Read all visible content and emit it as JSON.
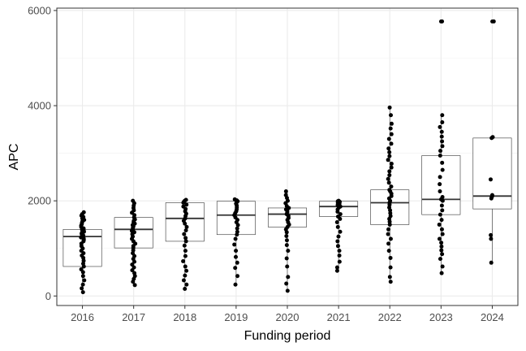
{
  "chart_data": {
    "type": "box",
    "xlabel": "Funding period",
    "ylabel": "APC",
    "ylim": [
      -200,
      6050
    ],
    "yticks": [
      0,
      2000,
      4000,
      6000
    ],
    "grid": true,
    "categories": [
      "2016",
      "2017",
      "2018",
      "2019",
      "2020",
      "2021",
      "2022",
      "2023",
      "2024"
    ],
    "boxes": [
      {
        "category": "2016",
        "q1": 620,
        "median": 1250,
        "q3": 1400,
        "whisker_low": 80,
        "whisker_high": 1760,
        "points": [
          80,
          160,
          240,
          330,
          420,
          500,
          560,
          620,
          680,
          740,
          800,
          850,
          900,
          950,
          1000,
          1050,
          1100,
          1150,
          1180,
          1210,
          1230,
          1250,
          1270,
          1290,
          1310,
          1330,
          1350,
          1370,
          1390,
          1400,
          1420,
          1450,
          1480,
          1510,
          1540,
          1570,
          1600,
          1630,
          1660,
          1690,
          1720,
          1760
        ]
      },
      {
        "category": "2017",
        "q1": 1010,
        "median": 1400,
        "q3": 1650,
        "whisker_low": 230,
        "whisker_high": 2000,
        "points": [
          230,
          300,
          360,
          420,
          480,
          540,
          600,
          660,
          720,
          780,
          840,
          900,
          960,
          1010,
          1050,
          1100,
          1150,
          1200,
          1250,
          1300,
          1340,
          1370,
          1400,
          1430,
          1460,
          1490,
          1520,
          1550,
          1580,
          1610,
          1650,
          1700,
          1750,
          1800,
          1850,
          1900,
          1950,
          2000
        ]
      },
      {
        "category": "2018",
        "q1": 1150,
        "median": 1630,
        "q3": 1960,
        "whisker_low": 150,
        "whisker_high": 2020,
        "points": [
          150,
          240,
          330,
          430,
          530,
          620,
          730,
          840,
          950,
          1060,
          1150,
          1220,
          1300,
          1380,
          1450,
          1520,
          1580,
          1630,
          1680,
          1730,
          1780,
          1830,
          1880,
          1920,
          1960,
          1980,
          2000,
          2020
        ]
      },
      {
        "category": "2019",
        "q1": 1290,
        "median": 1700,
        "q3": 1990,
        "whisker_low": 240,
        "whisker_high": 2030,
        "points": [
          240,
          420,
          590,
          700,
          820,
          950,
          1080,
          1200,
          1290,
          1350,
          1420,
          1490,
          1550,
          1600,
          1650,
          1700,
          1740,
          1780,
          1820,
          1860,
          1900,
          1940,
          1970,
          1990,
          2010,
          2030
        ]
      },
      {
        "category": "2020",
        "q1": 1450,
        "median": 1720,
        "q3": 1850,
        "whisker_low": 110,
        "whisker_high": 2200,
        "points": [
          110,
          260,
          400,
          620,
          790,
          950,
          1070,
          1170,
          1260,
          1340,
          1400,
          1450,
          1500,
          1550,
          1600,
          1640,
          1680,
          1720,
          1760,
          1790,
          1820,
          1850,
          1890,
          1950,
          2000,
          2060,
          2120,
          2200
        ]
      },
      {
        "category": "2021",
        "q1": 1670,
        "median": 1880,
        "q3": 1990,
        "whisker_low": 530,
        "whisker_high": 2000,
        "points": [
          530,
          600,
          720,
          850,
          950,
          1050,
          1150,
          1250,
          1350,
          1450,
          1550,
          1620,
          1670,
          1720,
          1770,
          1820,
          1860,
          1880,
          1910,
          1940,
          1960,
          1980,
          1990,
          2000
        ]
      },
      {
        "category": "2022",
        "q1": 1500,
        "median": 1960,
        "q3": 2230,
        "whisker_low": 300,
        "whisker_high": 3960,
        "points": [
          300,
          400,
          600,
          800,
          950,
          1100,
          1200,
          1300,
          1400,
          1500,
          1560,
          1620,
          1680,
          1740,
          1800,
          1860,
          1920,
          1960,
          2000,
          2050,
          2100,
          2150,
          2200,
          2230,
          2300,
          2380,
          2460,
          2540,
          2620,
          2700,
          2780,
          2860,
          2940,
          3020,
          3100,
          3200,
          3300,
          3400,
          3520,
          3620,
          3800,
          3960
        ]
      },
      {
        "category": "2023",
        "q1": 1710,
        "median": 2030,
        "q3": 2950,
        "whisker_low": 480,
        "whisker_high": 3800,
        "outliers": [
          5770
        ],
        "points": [
          480,
          620,
          780,
          880,
          960,
          1040,
          1120,
          1200,
          1300,
          1400,
          1500,
          1600,
          1710,
          1800,
          1900,
          2000,
          2030,
          2080,
          2200,
          2350,
          2500,
          2650,
          2800,
          2950,
          3050,
          3150,
          3250,
          3350,
          3450,
          3550,
          3650,
          3800,
          5770
        ]
      },
      {
        "category": "2024",
        "q1": 1830,
        "median": 2100,
        "q3": 3320,
        "whisker_low": 700,
        "whisker_high": 3340,
        "outliers": [
          5770
        ],
        "points": [
          700,
          1200,
          1280,
          2050,
          2080,
          2100,
          2120,
          2450,
          3320,
          3340,
          5770
        ]
      }
    ]
  }
}
